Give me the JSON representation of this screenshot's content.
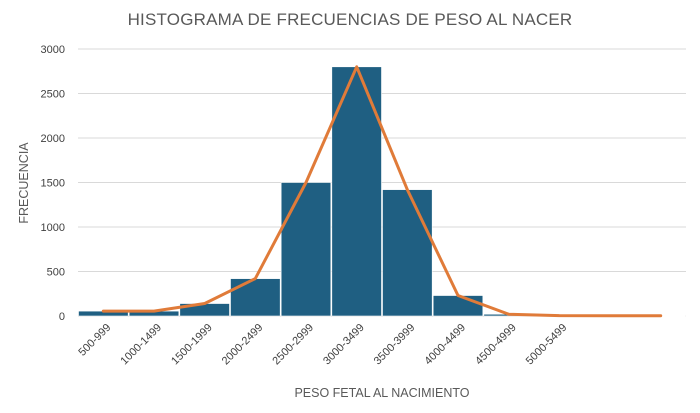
{
  "chart_data": {
    "type": "bar",
    "title": "HISTOGRAMA DE FRECUENCIAS DE PESO AL NACER",
    "xlabel": "PESO FETAL AL NACIMIENTO",
    "ylabel": "FRECUENCIA",
    "ylim": [
      0,
      3000
    ],
    "yticks": [
      0,
      500,
      1000,
      1500,
      2000,
      2500,
      3000
    ],
    "grid": true,
    "legend": "none",
    "categories": [
      "500-999",
      "1000-1499",
      "1500-1999",
      "2000-2499",
      "2500-2999",
      "3000-3499",
      "3500-3999",
      "4000-4499",
      "4500-4999",
      "5000-5499",
      "",
      ""
    ],
    "series": [
      {
        "type": "bar",
        "color": "#1f5f82",
        "values": [
          55,
          55,
          140,
          420,
          1500,
          2800,
          1420,
          230,
          20,
          5,
          3,
          3
        ]
      },
      {
        "type": "line",
        "color": "#e07b39",
        "values": [
          55,
          55,
          140,
          420,
          1500,
          2800,
          1420,
          230,
          20,
          5,
          3,
          3
        ]
      }
    ]
  }
}
